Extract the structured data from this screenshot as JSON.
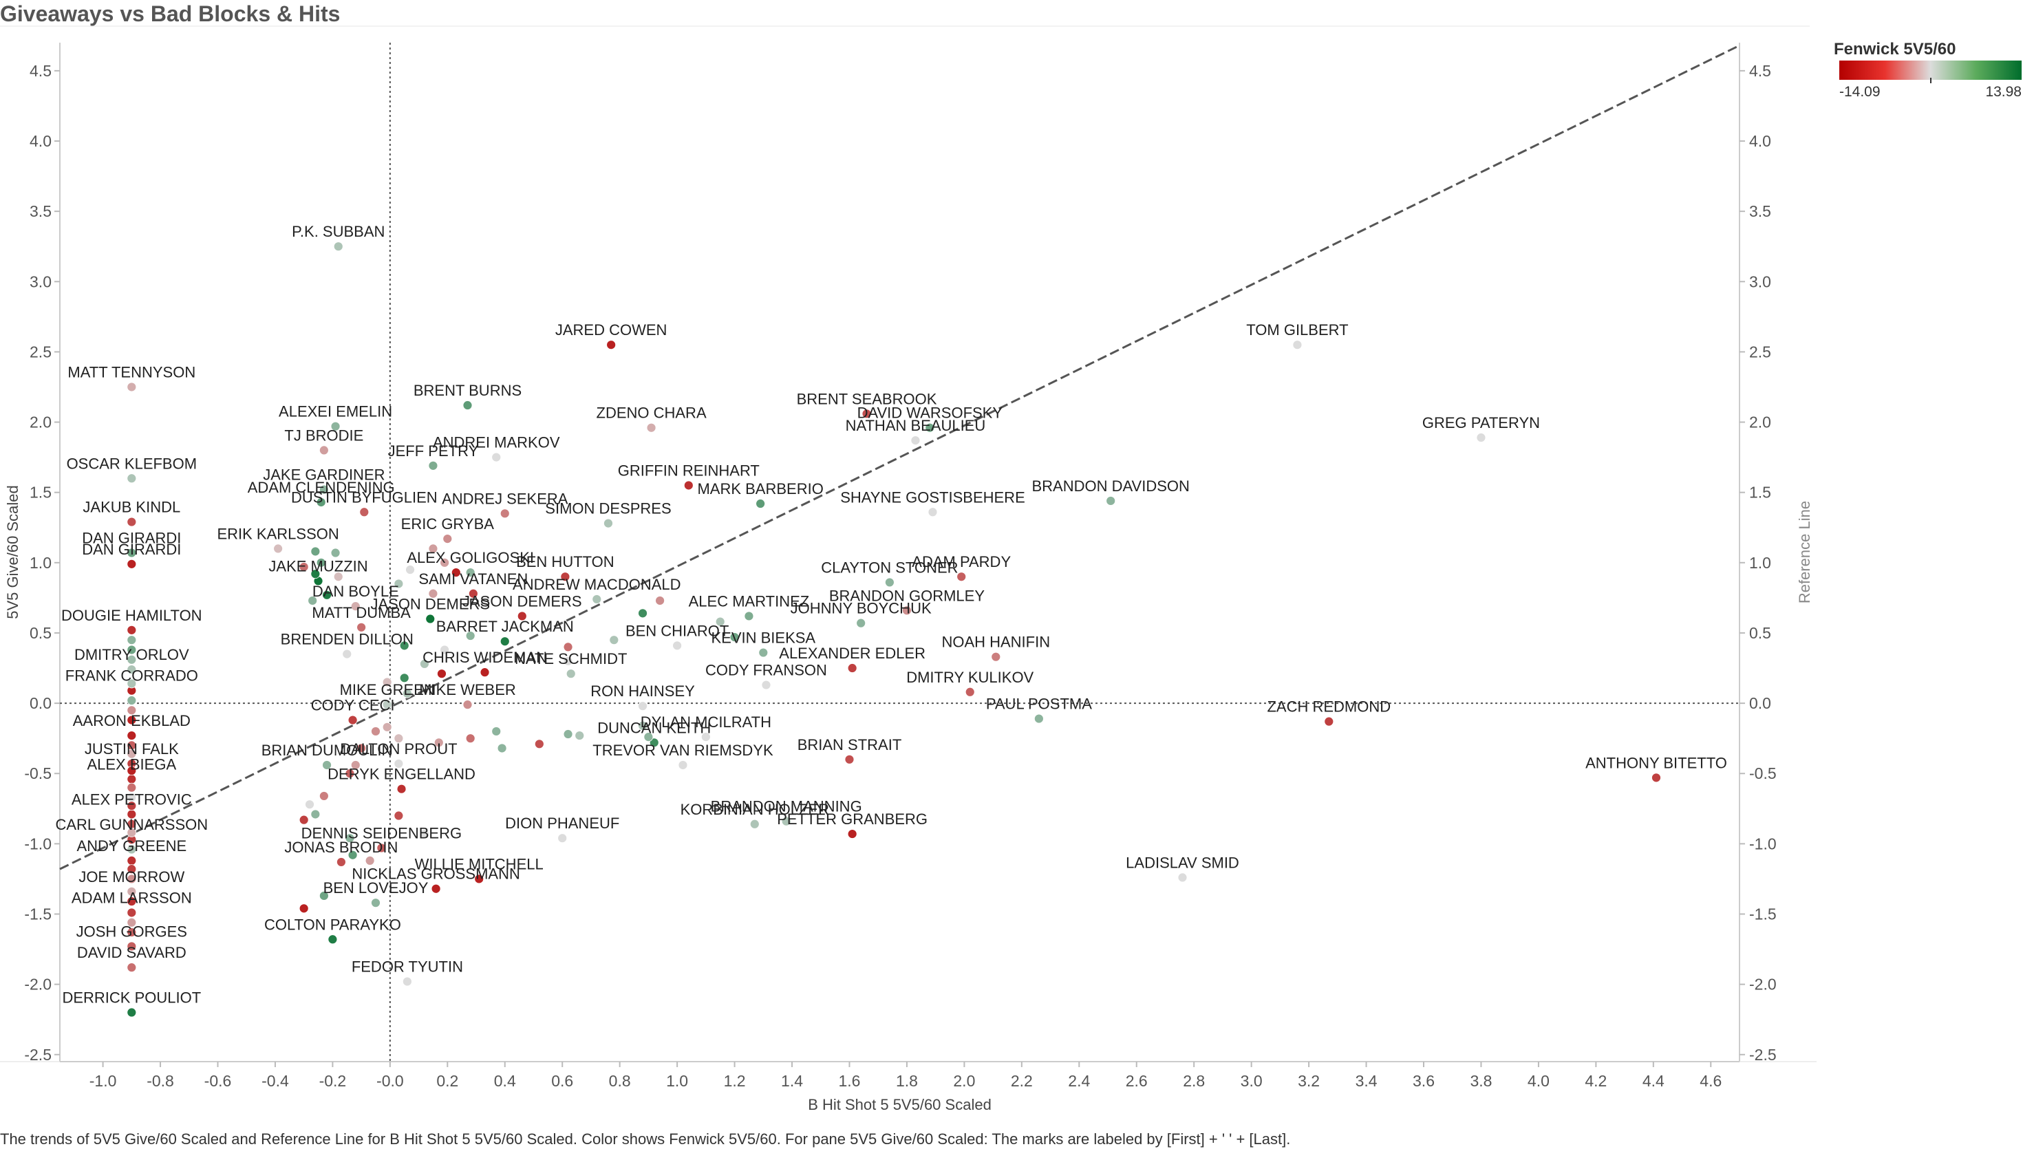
{
  "title": "Giveaways vs Bad Blocks & Hits",
  "legend": {
    "title": "Fenwick 5V5/60",
    "min": "-14.09",
    "max": "13.98"
  },
  "footer": "The trends of 5V5 Give/60 Scaled and Reference Line for B Hit Shot 5 5V5/60 Scaled.  Color shows Fenwick 5V5/60.  For pane 5V5 Give/60 Scaled:  The marks are labeled by [First] + ' ' + [Last].",
  "chart_data": {
    "type": "scatter",
    "title": "Giveaways vs Bad Blocks & Hits",
    "xlabel": "B Hit Shot 5 5V5/60 Scaled",
    "ylabel": "5V5 Give/60 Scaled",
    "y2label": "Reference Line",
    "xlim": [
      -1.15,
      4.7
    ],
    "ylim": [
      -2.55,
      4.7
    ],
    "xticks": [
      -1.0,
      -0.8,
      -0.6,
      -0.4,
      -0.2,
      0.0,
      0.2,
      0.4,
      0.6,
      0.8,
      1.0,
      1.2,
      1.4,
      1.6,
      1.8,
      2.0,
      2.2,
      2.4,
      2.6,
      2.8,
      3.0,
      3.2,
      3.4,
      3.6,
      3.8,
      4.0,
      4.2,
      4.4,
      4.6
    ],
    "xtick_labels": [
      "-1.0",
      "-0.8",
      "-0.6",
      "-0.4",
      "-0.2",
      "-0.0",
      "0.2",
      "0.4",
      "0.6",
      "0.8",
      "1.0",
      "1.2",
      "1.4",
      "1.6",
      "1.8",
      "2.0",
      "2.2",
      "2.4",
      "2.6",
      "2.8",
      "3.0",
      "3.2",
      "3.4",
      "3.6",
      "3.8",
      "4.0",
      "4.2",
      "4.4",
      "4.6"
    ],
    "yticks": [
      -2.5,
      -2.0,
      -1.5,
      -1.0,
      -0.5,
      0.0,
      0.5,
      1.0,
      1.5,
      2.0,
      2.5,
      3.0,
      3.5,
      4.0,
      4.5
    ],
    "ytick_labels": [
      "-2.5",
      "-2.0",
      "-1.5",
      "-1.0",
      "-0.5",
      "0.0",
      "0.5",
      "1.0",
      "1.5",
      "2.0",
      "2.5",
      "3.0",
      "3.5",
      "4.0",
      "4.5"
    ],
    "color_scale": {
      "field": "Fenwick 5V5/60",
      "min": -14.09,
      "max": 13.98,
      "low": "#b30000",
      "mid": "#dcdcdc",
      "high": "#006d2c"
    },
    "zero_lines": {
      "x": 0.0,
      "y": 0.0,
      "style": "dotted"
    },
    "trend_line": {
      "x": [
        -1.15,
        4.7
      ],
      "y": [
        -1.18,
        4.68
      ],
      "style": "dashed"
    },
    "points": [
      {
        "x": -0.18,
        "y": 3.25,
        "c": 3,
        "label": "P.K. SUBBAN"
      },
      {
        "x": 0.77,
        "y": 2.55,
        "c": -12,
        "label": "JARED COWEN"
      },
      {
        "x": 3.16,
        "y": 2.55,
        "c": 0,
        "label": "TOM GILBERT"
      },
      {
        "x": -0.9,
        "y": 2.25,
        "c": -3,
        "label": "MATT TENNYSON"
      },
      {
        "x": 0.27,
        "y": 2.12,
        "c": 8,
        "label": "BRENT BURNS"
      },
      {
        "x": 1.66,
        "y": 2.06,
        "c": -9,
        "label": "BRENT SEABROOK"
      },
      {
        "x": 0.91,
        "y": 1.96,
        "c": -3,
        "label": "ZDENO CHARA"
      },
      {
        "x": -0.19,
        "y": 1.97,
        "c": 5,
        "label": "ALEXEI EMELIN"
      },
      {
        "x": 1.88,
        "y": 1.96,
        "c": 7,
        "label": "DAVID WARSOFSKY"
      },
      {
        "x": 3.8,
        "y": 1.89,
        "c": 0,
        "label": "GREG PATERYN"
      },
      {
        "x": -0.23,
        "y": 1.8,
        "c": -4,
        "label": "TJ BRODIE"
      },
      {
        "x": 1.83,
        "y": 1.87,
        "c": 0,
        "label": "NATHAN BEAULIEU"
      },
      {
        "x": 0.37,
        "y": 1.75,
        "c": 0,
        "label": "ANDREI MARKOV"
      },
      {
        "x": 0.15,
        "y": 1.69,
        "c": 6,
        "label": "JEFF PETRY"
      },
      {
        "x": -0.9,
        "y": 1.6,
        "c": 3,
        "label": "OSCAR KLEFBOM"
      },
      {
        "x": -0.23,
        "y": 1.52,
        "c": 5,
        "label": "JAKE GARDINER"
      },
      {
        "x": 1.04,
        "y": 1.55,
        "c": -11,
        "label": "GRIFFIN REINHART"
      },
      {
        "x": 1.29,
        "y": 1.42,
        "c": 8,
        "label": "MARK BARBERIO"
      },
      {
        "x": 2.51,
        "y": 1.44,
        "c": 5,
        "label": "BRANDON DAVIDSON"
      },
      {
        "x": -0.24,
        "y": 1.43,
        "c": 8,
        "label": "ADAM CLENDENING"
      },
      {
        "x": 1.89,
        "y": 1.36,
        "c": 0,
        "label": "SHAYNE GOSTISBEHERE"
      },
      {
        "x": 0.4,
        "y": 1.35,
        "c": -6,
        "label": "ANDREJ SEKERA"
      },
      {
        "x": -0.09,
        "y": 1.36,
        "c": -8,
        "label": "DUSTIN BYFUGLIEN"
      },
      {
        "x": -0.9,
        "y": 1.29,
        "c": -9,
        "label": "JAKUB KINDL"
      },
      {
        "x": 0.76,
        "y": 1.28,
        "c": 3,
        "label": "SIMON DESPRES"
      },
      {
        "x": 0.2,
        "y": 1.17,
        "c": -5,
        "label": "ERIC GRYBA"
      },
      {
        "x": -0.39,
        "y": 1.1,
        "c": -2,
        "label": "ERIK KARLSSON"
      },
      {
        "x": -0.9,
        "y": 1.07,
        "c": 7,
        "label": "DAN GIRARDI"
      },
      {
        "x": -0.9,
        "y": 0.99,
        "c": -12,
        "label": "DAN GIRARDI"
      },
      {
        "x": 0.28,
        "y": 0.93,
        "c": 5,
        "label": "ALEX GOLIGOSKI"
      },
      {
        "x": 0.61,
        "y": 0.9,
        "c": -10,
        "label": "BEN HUTTON"
      },
      {
        "x": 1.74,
        "y": 0.86,
        "c": 5,
        "label": "CLAYTON STONER"
      },
      {
        "x": 1.99,
        "y": 0.9,
        "c": -8,
        "label": "ADAM PARDY"
      },
      {
        "x": -0.25,
        "y": 0.87,
        "c": 13,
        "label": "JAKE MUZZIN"
      },
      {
        "x": 0.29,
        "y": 0.78,
        "c": -10,
        "label": "SAMI VATANEN"
      },
      {
        "x": -0.12,
        "y": 0.69,
        "c": -3,
        "label": "DAN BOYLE"
      },
      {
        "x": 0.72,
        "y": 0.74,
        "c": 3,
        "label": "ANDREW MACDONALD"
      },
      {
        "x": 1.8,
        "y": 0.66,
        "c": -5,
        "label": "BRANDON GORMLEY"
      },
      {
        "x": 0.14,
        "y": 0.6,
        "c": 13,
        "label": "JASON DEMERS"
      },
      {
        "x": 0.46,
        "y": 0.62,
        "c": -11,
        "label": "JASON DEMERS"
      },
      {
        "x": 1.25,
        "y": 0.62,
        "c": 6,
        "label": "ALEC MARTINEZ"
      },
      {
        "x": 1.64,
        "y": 0.57,
        "c": 5,
        "label": "JOHNNY BOYCHUK"
      },
      {
        "x": -0.1,
        "y": 0.54,
        "c": -7,
        "label": "MATT DUMBA"
      },
      {
        "x": -0.9,
        "y": 0.52,
        "c": -11,
        "label": "DOUGIE HAMILTON"
      },
      {
        "x": 0.4,
        "y": 0.44,
        "c": 12,
        "label": "BARRET JACKMAN"
      },
      {
        "x": 1.0,
        "y": 0.41,
        "c": 0,
        "label": "BEN CHIAROT"
      },
      {
        "x": 1.3,
        "y": 0.36,
        "c": 5,
        "label": "KEVIN BIEKSA"
      },
      {
        "x": 2.11,
        "y": 0.33,
        "c": -6,
        "label": "NOAH HANIFIN"
      },
      {
        "x": -0.15,
        "y": 0.35,
        "c": 0,
        "label": "BRENDEN DILLON"
      },
      {
        "x": -0.9,
        "y": 0.24,
        "c": 3,
        "label": "DMITRY ORLOV"
      },
      {
        "x": 1.61,
        "y": 0.25,
        "c": -10,
        "label": "ALEXANDER EDLER"
      },
      {
        "x": 0.33,
        "y": 0.22,
        "c": -12,
        "label": "CHRIS WIDEMAN"
      },
      {
        "x": 0.63,
        "y": 0.21,
        "c": 3,
        "label": "NATE SCHMIDT"
      },
      {
        "x": 2.02,
        "y": 0.08,
        "c": -8,
        "label": "DMITRY KULIKOV"
      },
      {
        "x": -0.9,
        "y": 0.09,
        "c": -12,
        "label": "FRANK CORRADO"
      },
      {
        "x": 0.27,
        "y": -0.01,
        "c": -5,
        "label": "MIKE WEBER"
      },
      {
        "x": 0.88,
        "y": -0.02,
        "c": 0,
        "label": "RON HAINSEY"
      },
      {
        "x": -0.01,
        "y": -0.01,
        "c": 2,
        "label": "MIKE GREEN"
      },
      {
        "x": -0.13,
        "y": -0.12,
        "c": -10,
        "label": "CODY CECI"
      },
      {
        "x": 1.31,
        "y": 0.13,
        "c": 0,
        "label": "CODY FRANSON"
      },
      {
        "x": 3.27,
        "y": -0.13,
        "c": -10,
        "label": "ZACH REDMOND"
      },
      {
        "x": 2.26,
        "y": -0.11,
        "c": 5,
        "label": "PAUL POSTMA"
      },
      {
        "x": 1.1,
        "y": -0.24,
        "c": 0,
        "label": "DYLAN MCILRATH"
      },
      {
        "x": -0.9,
        "y": -0.23,
        "c": -12,
        "label": "AARON EKBLAD"
      },
      {
        "x": 0.92,
        "y": -0.28,
        "c": 10,
        "label": "DUNCAN KEITH"
      },
      {
        "x": -0.22,
        "y": -0.44,
        "c": 5,
        "label": "BRIAN DUMOULIN"
      },
      {
        "x": 1.6,
        "y": -0.4,
        "c": -9,
        "label": "BRIAN STRAIT"
      },
      {
        "x": -0.9,
        "y": -0.43,
        "c": -10,
        "label": "JUSTIN FALK"
      },
      {
        "x": 0.03,
        "y": -0.43,
        "c": 0,
        "label": "DALTON PROUT"
      },
      {
        "x": 1.02,
        "y": -0.44,
        "c": 0,
        "label": "TREVOR VAN RIEMSDYK"
      },
      {
        "x": 4.41,
        "y": -0.53,
        "c": -10,
        "label": "ANTHONY BITETTO"
      },
      {
        "x": -0.9,
        "y": -0.54,
        "c": -11,
        "label": "ALEX BIEGA"
      },
      {
        "x": 0.04,
        "y": -0.61,
        "c": -11,
        "label": "DERYK ENGELLAND"
      },
      {
        "x": -0.9,
        "y": -0.79,
        "c": -11,
        "label": "ALEX PETROVIC"
      },
      {
        "x": 1.38,
        "y": -0.84,
        "c": 3,
        "label": "BRANDON MANNING"
      },
      {
        "x": 1.27,
        "y": -0.86,
        "c": 3,
        "label": "KORBINIAN HOLZER"
      },
      {
        "x": 0.6,
        "y": -0.96,
        "c": 0,
        "label": "DION PHANEUF"
      },
      {
        "x": 1.61,
        "y": -0.93,
        "c": -12,
        "label": "PETTER GRANBERG"
      },
      {
        "x": -0.9,
        "y": -0.97,
        "c": -10,
        "label": "CARL GUNNARSSON"
      },
      {
        "x": -0.03,
        "y": -1.03,
        "c": -8,
        "label": "DENNIS SEIDENBERG"
      },
      {
        "x": -0.9,
        "y": -1.12,
        "c": -11,
        "label": "ANDY GREENE"
      },
      {
        "x": 0.31,
        "y": -1.25,
        "c": -12,
        "label": "WILLIE MITCHELL"
      },
      {
        "x": -0.17,
        "y": -1.13,
        "c": -9,
        "label": "JONAS BRODIN"
      },
      {
        "x": 2.76,
        "y": -1.24,
        "c": 0,
        "label": "LADISLAV SMID"
      },
      {
        "x": 0.16,
        "y": -1.32,
        "c": -12,
        "label": "NICKLAS GROSSMANN"
      },
      {
        "x": -0.9,
        "y": -1.34,
        "c": -3,
        "label": "JOE MORROW"
      },
      {
        "x": -0.9,
        "y": -1.49,
        "c": -10,
        "label": "ADAM LARSSON"
      },
      {
        "x": -0.05,
        "y": -1.42,
        "c": 5,
        "label": "BEN LOVEJOY"
      },
      {
        "x": -0.9,
        "y": -1.73,
        "c": -8,
        "label": "JOSH GORGES"
      },
      {
        "x": -0.2,
        "y": -1.68,
        "c": 12,
        "label": "COLTON PARAYKO"
      },
      {
        "x": -0.9,
        "y": -1.88,
        "c": -7,
        "label": "DAVID SAVARD"
      },
      {
        "x": 0.06,
        "y": -1.98,
        "c": 0,
        "label": "FEDOR TYUTIN"
      },
      {
        "x": -0.9,
        "y": -2.2,
        "c": 12,
        "label": "DERRICK POULIOT"
      },
      {
        "x": -0.26,
        "y": 1.08,
        "c": 7,
        "label": ""
      },
      {
        "x": -0.19,
        "y": 1.07,
        "c": 5,
        "label": ""
      },
      {
        "x": -0.24,
        "y": 1.0,
        "c": 7,
        "label": ""
      },
      {
        "x": -0.3,
        "y": 0.97,
        "c": -7,
        "label": ""
      },
      {
        "x": -0.26,
        "y": 0.92,
        "c": 12,
        "label": ""
      },
      {
        "x": -0.18,
        "y": 0.9,
        "c": -2,
        "label": ""
      },
      {
        "x": -0.22,
        "y": 0.77,
        "c": 12,
        "label": ""
      },
      {
        "x": -0.27,
        "y": 0.73,
        "c": 5,
        "label": ""
      },
      {
        "x": 0.07,
        "y": 0.95,
        "c": 0,
        "label": ""
      },
      {
        "x": 0.15,
        "y": 1.1,
        "c": -4,
        "label": ""
      },
      {
        "x": 0.19,
        "y": 1.0,
        "c": -4,
        "label": ""
      },
      {
        "x": 0.23,
        "y": 0.93,
        "c": -12,
        "label": ""
      },
      {
        "x": 0.03,
        "y": 0.85,
        "c": 3,
        "label": ""
      },
      {
        "x": 0.15,
        "y": 0.78,
        "c": -4,
        "label": ""
      },
      {
        "x": 0.28,
        "y": 0.48,
        "c": 5,
        "label": ""
      },
      {
        "x": 0.05,
        "y": 0.41,
        "c": 10,
        "label": ""
      },
      {
        "x": 0.19,
        "y": 0.38,
        "c": 0,
        "label": ""
      },
      {
        "x": 0.12,
        "y": 0.28,
        "c": 3,
        "label": ""
      },
      {
        "x": 0.05,
        "y": 0.18,
        "c": 10,
        "label": ""
      },
      {
        "x": -0.01,
        "y": 0.15,
        "c": -2,
        "label": ""
      },
      {
        "x": 0.18,
        "y": 0.21,
        "c": -12,
        "label": ""
      },
      {
        "x": 0.62,
        "y": 0.4,
        "c": -7,
        "label": ""
      },
      {
        "x": 0.78,
        "y": 0.45,
        "c": 3,
        "label": ""
      },
      {
        "x": 0.88,
        "y": 0.64,
        "c": 10,
        "label": ""
      },
      {
        "x": 0.94,
        "y": 0.73,
        "c": -5,
        "label": ""
      },
      {
        "x": 0.62,
        "y": 0.3,
        "c": 0,
        "label": ""
      },
      {
        "x": 1.2,
        "y": 0.47,
        "c": 7,
        "label": ""
      },
      {
        "x": 1.15,
        "y": 0.58,
        "c": 3,
        "label": ""
      },
      {
        "x": 0.06,
        "y": 0.07,
        "c": 3,
        "label": ""
      },
      {
        "x": -0.01,
        "y": -0.17,
        "c": -3,
        "label": ""
      },
      {
        "x": -0.05,
        "y": -0.2,
        "c": -5,
        "label": ""
      },
      {
        "x": 0.03,
        "y": -0.25,
        "c": -2,
        "label": ""
      },
      {
        "x": -0.1,
        "y": -0.32,
        "c": -7,
        "label": ""
      },
      {
        "x": 0.17,
        "y": -0.28,
        "c": -4,
        "label": ""
      },
      {
        "x": 0.28,
        "y": -0.25,
        "c": -7,
        "label": ""
      },
      {
        "x": 0.37,
        "y": -0.2,
        "c": 5,
        "label": ""
      },
      {
        "x": 0.39,
        "y": -0.32,
        "c": 5,
        "label": ""
      },
      {
        "x": 0.52,
        "y": -0.29,
        "c": -9,
        "label": ""
      },
      {
        "x": 0.62,
        "y": -0.22,
        "c": 5,
        "label": ""
      },
      {
        "x": 0.66,
        "y": -0.23,
        "c": 3,
        "label": ""
      },
      {
        "x": 0.88,
        "y": -0.16,
        "c": 3,
        "label": ""
      },
      {
        "x": 0.9,
        "y": -0.24,
        "c": 5,
        "label": ""
      },
      {
        "x": -0.12,
        "y": -0.44,
        "c": -4,
        "label": ""
      },
      {
        "x": -0.14,
        "y": -0.5,
        "c": -8,
        "label": ""
      },
      {
        "x": -0.23,
        "y": -0.66,
        "c": -6,
        "label": ""
      },
      {
        "x": -0.28,
        "y": -0.72,
        "c": 0,
        "label": ""
      },
      {
        "x": -0.3,
        "y": -0.83,
        "c": -10,
        "label": ""
      },
      {
        "x": -0.26,
        "y": -0.79,
        "c": 5,
        "label": ""
      },
      {
        "x": -0.14,
        "y": -0.96,
        "c": 5,
        "label": ""
      },
      {
        "x": -0.13,
        "y": -1.08,
        "c": 8,
        "label": ""
      },
      {
        "x": -0.07,
        "y": -1.12,
        "c": -4,
        "label": ""
      },
      {
        "x": -0.23,
        "y": -1.37,
        "c": 7,
        "label": ""
      },
      {
        "x": -0.3,
        "y": -1.46,
        "c": -12,
        "label": ""
      },
      {
        "x": 0.12,
        "y": -0.93,
        "c": 0,
        "label": ""
      },
      {
        "x": 0.03,
        "y": -0.8,
        "c": -9,
        "label": ""
      },
      {
        "x": -0.9,
        "y": 0.45,
        "c": 5,
        "label": ""
      },
      {
        "x": -0.9,
        "y": 0.38,
        "c": 7,
        "label": ""
      },
      {
        "x": -0.9,
        "y": 0.31,
        "c": 4,
        "label": ""
      },
      {
        "x": -0.9,
        "y": 0.14,
        "c": 3,
        "label": ""
      },
      {
        "x": -0.9,
        "y": 0.02,
        "c": 5,
        "label": ""
      },
      {
        "x": -0.9,
        "y": -0.05,
        "c": -5,
        "label": ""
      },
      {
        "x": -0.9,
        "y": -0.12,
        "c": -12,
        "label": ""
      },
      {
        "x": -0.9,
        "y": -0.3,
        "c": -8,
        "label": ""
      },
      {
        "x": -0.9,
        "y": -0.36,
        "c": -3,
        "label": ""
      },
      {
        "x": -0.9,
        "y": -0.48,
        "c": -12,
        "label": ""
      },
      {
        "x": -0.9,
        "y": -0.6,
        "c": -7,
        "label": ""
      },
      {
        "x": -0.9,
        "y": -0.67,
        "c": 0,
        "label": ""
      },
      {
        "x": -0.9,
        "y": -0.73,
        "c": 5,
        "label": ""
      },
      {
        "x": -0.9,
        "y": -0.86,
        "c": -9,
        "label": ""
      },
      {
        "x": -0.9,
        "y": -0.92,
        "c": -3,
        "label": ""
      },
      {
        "x": -0.9,
        "y": -1.04,
        "c": 3,
        "label": ""
      },
      {
        "x": -0.9,
        "y": -1.18,
        "c": -10,
        "label": ""
      },
      {
        "x": -0.9,
        "y": -1.25,
        "c": -5,
        "label": ""
      },
      {
        "x": -0.9,
        "y": -1.41,
        "c": -11,
        "label": ""
      },
      {
        "x": -0.9,
        "y": -1.56,
        "c": -4,
        "label": ""
      },
      {
        "x": -0.9,
        "y": -1.63,
        "c": -8,
        "label": ""
      },
      {
        "x": -0.9,
        "y": -0.73,
        "c": -10,
        "label": ""
      }
    ]
  }
}
